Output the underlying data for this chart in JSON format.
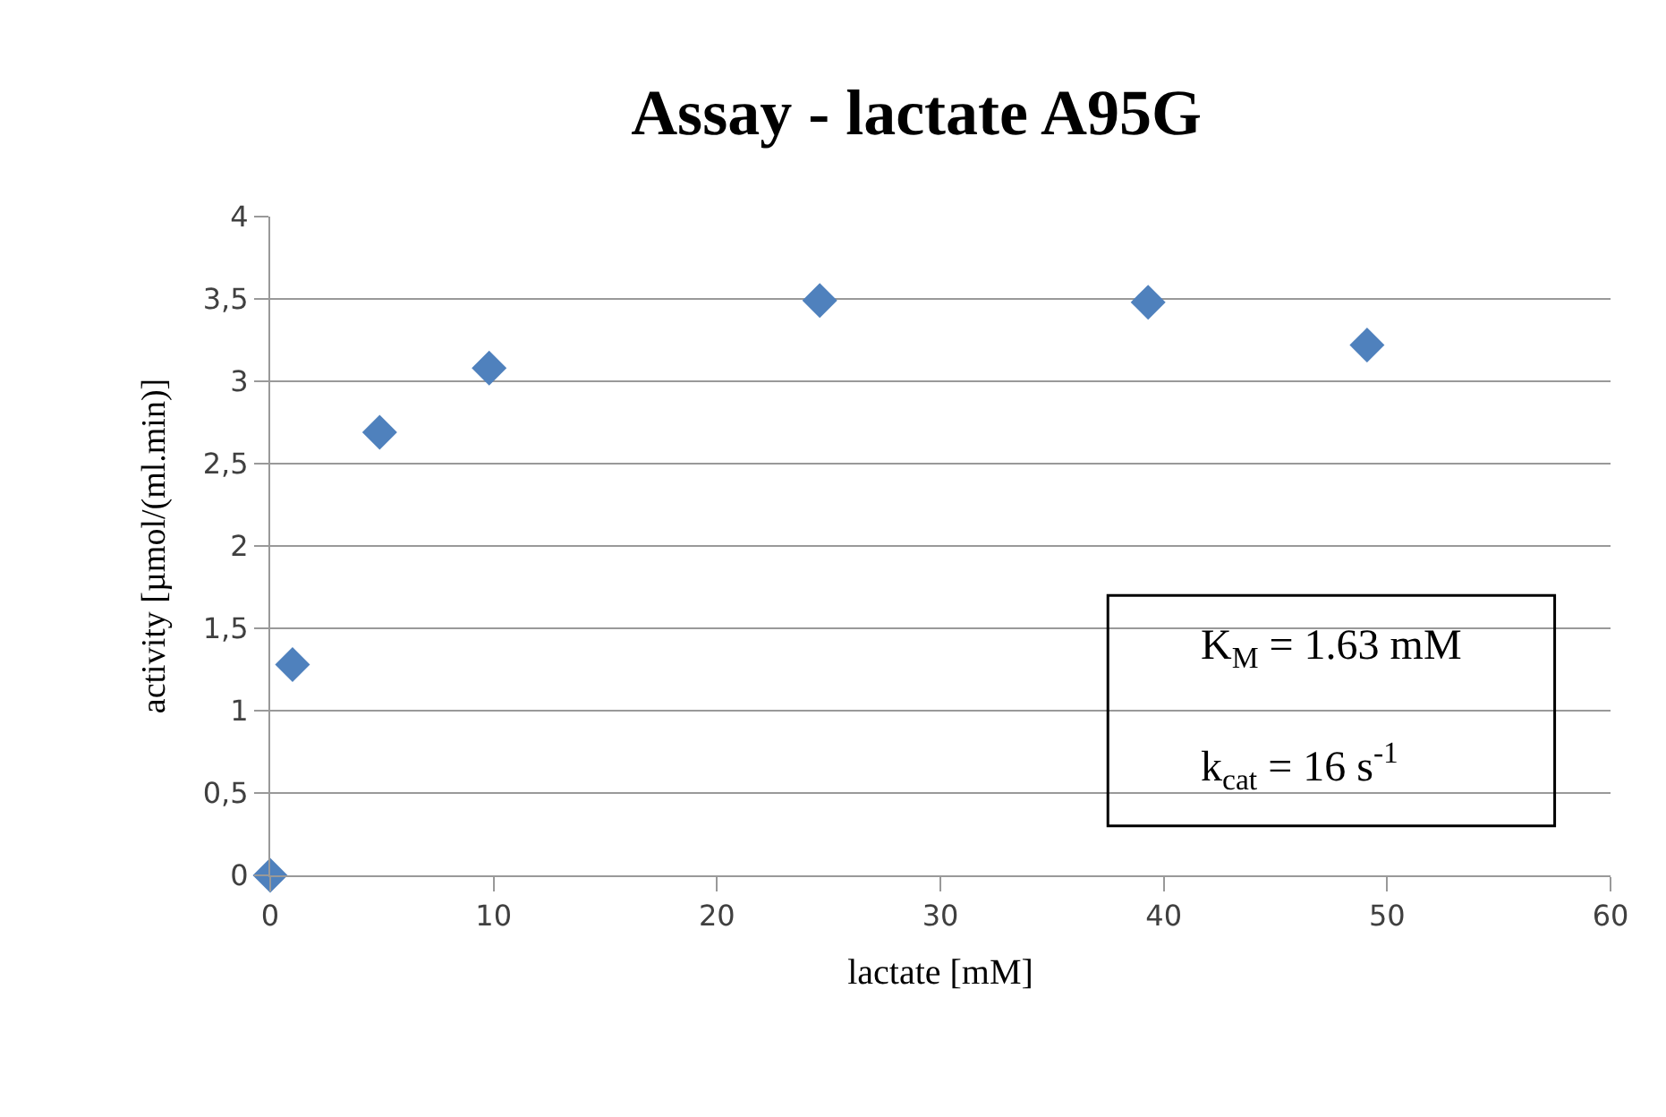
{
  "chart_data": {
    "type": "scatter",
    "title": "Assay - lactate A95G",
    "xlabel": "lactate [mM]",
    "ylabel": "activity [µmol/(ml.min)]",
    "x": [
      0,
      1,
      4.9,
      9.8,
      24.6,
      39.3,
      49.1
    ],
    "series": [
      {
        "color": "#4f81bd",
        "values": [
          0,
          1.28,
          2.69,
          3.08,
          3.49,
          3.48,
          3.22
        ]
      }
    ],
    "xlim": [
      0,
      60
    ],
    "xticks": [
      0,
      10,
      20,
      30,
      40,
      50,
      60
    ],
    "ylim": [
      0,
      4
    ],
    "yticks": [
      0,
      {
        "value": 0.5,
        "label": "0,5"
      },
      1,
      {
        "value": 1.5,
        "label": "1,5"
      },
      2,
      {
        "value": 2.5,
        "label": "2,5"
      },
      3,
      {
        "value": 3.5,
        "label": "3,5"
      },
      4
    ],
    "grid": "y",
    "legend": false,
    "marker": "diamond",
    "annotations": [
      "K$_{M}$ = 1.63 mM",
      "k$_{cat}$ = 16 s$^{-1}$"
    ]
  }
}
